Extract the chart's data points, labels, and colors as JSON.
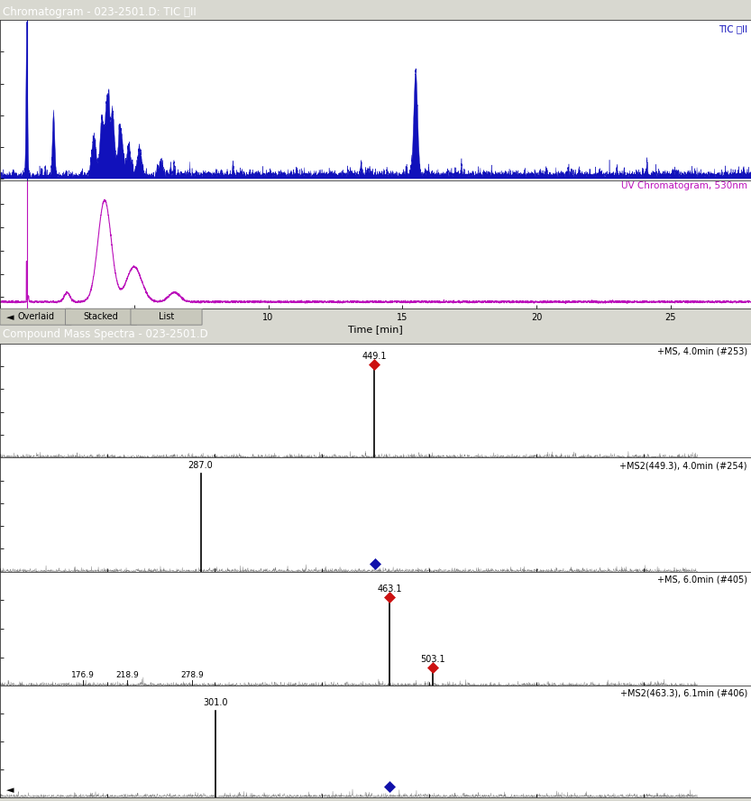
{
  "title_chromatogram": "Chromatogram - 023-2501.D: TIC 코II",
  "title_ms": "Compound Mass Spectra - 023-2501.D",
  "title_bar_color": "#5588cc",
  "title_ms_bar_color": "#8aabcc",
  "bg_color": "#d8d8d0",
  "plot_bg": "#ffffff",
  "tab_labels": [
    "Overlaid",
    "Stacked",
    "List"
  ],
  "tic_label": "TIC 코II",
  "uv_label": "UV Chromatogram, 530nm",
  "ms1_label1": "+MS, 4.0min (#253)",
  "ms2_label1": "+MS2(449.3), 4.0min (#254)",
  "ms1_label2": "+MS, 6.0min (#405)",
  "ms2_label2": "+MS2(463.3), 6.1min (#406)",
  "time_xlim": [
    0,
    28
  ],
  "mz_xlim": [
    100,
    750
  ],
  "blue_color": "#1111bb",
  "pink_color": "#bb11bb",
  "black_color": "#000000",
  "red_diamond_color": "#cc1111",
  "blue_diamond_color": "#1111aa",
  "noise_floor": 0.05
}
